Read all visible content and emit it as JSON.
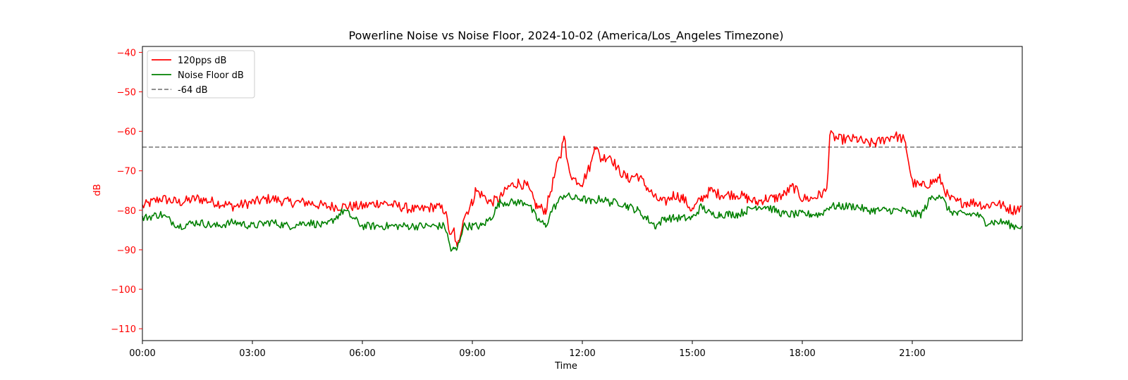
{
  "chart_data": {
    "type": "line",
    "title": "Powerline Noise vs Noise Floor, 2024-10-02 (America/Los_Angeles Timezone)",
    "xlabel": "Time",
    "ylabel": "dB",
    "xlim": [
      "00:00",
      "24:00"
    ],
    "ylim": [
      -113,
      -38.5
    ],
    "x_ticks": [
      "00:00",
      "03:00",
      "06:00",
      "09:00",
      "12:00",
      "15:00",
      "18:00",
      "21:00"
    ],
    "y_ticks": [
      -40,
      -50,
      -60,
      -70,
      -80,
      -90,
      -100,
      -110
    ],
    "grid": false,
    "legend_position": "top-left",
    "colors": {
      "pps": "#ff0000",
      "noise_floor": "#008000",
      "threshold": "#808080",
      "ylabel": "#ff0000",
      "ytick": "#ff0000"
    },
    "threshold": {
      "name": "-64 dB",
      "value": -64
    },
    "series": [
      {
        "name": "120pps dB",
        "color": "#ff0000",
        "x": [
          "00:00",
          "00:30",
          "01:00",
          "01:30",
          "02:00",
          "02:30",
          "03:00",
          "03:30",
          "04:00",
          "04:30",
          "05:00",
          "05:30",
          "06:00",
          "06:30",
          "07:00",
          "07:30",
          "08:00",
          "08:15",
          "08:25",
          "08:30",
          "08:35",
          "08:45",
          "09:00",
          "09:05",
          "09:15",
          "09:30",
          "09:45",
          "10:00",
          "10:15",
          "10:30",
          "10:45",
          "11:00",
          "11:10",
          "11:20",
          "11:25",
          "11:30",
          "11:35",
          "11:45",
          "12:00",
          "12:15",
          "12:20",
          "12:30",
          "12:45",
          "13:00",
          "13:15",
          "13:30",
          "13:45",
          "14:00",
          "14:15",
          "14:30",
          "14:45",
          "15:00",
          "15:15",
          "15:30",
          "15:45",
          "16:00",
          "16:15",
          "16:30",
          "16:45",
          "17:00",
          "17:15",
          "17:30",
          "17:45",
          "18:00",
          "18:15",
          "18:30",
          "18:40",
          "18:45",
          "19:00",
          "19:15",
          "19:30",
          "19:45",
          "20:00",
          "20:15",
          "20:30",
          "20:45",
          "20:50",
          "21:00",
          "21:15",
          "21:30",
          "21:45",
          "22:00",
          "22:15",
          "22:30",
          "22:45",
          "23:00",
          "23:15",
          "23:30",
          "23:45",
          "23:59"
        ],
        "values": [
          -79,
          -77,
          -78,
          -77,
          -78,
          -79,
          -78,
          -77,
          -78,
          -78,
          -79,
          -79,
          -79,
          -78,
          -79,
          -80,
          -79,
          -80,
          -87,
          -85,
          -90,
          -82,
          -78,
          -75,
          -76,
          -78,
          -77,
          -74,
          -73,
          -74,
          -79,
          -80,
          -74,
          -68,
          -66,
          -60,
          -68,
          -72,
          -73,
          -68,
          -63,
          -67,
          -66,
          -70,
          -72,
          -71,
          -74,
          -77,
          -78,
          -76,
          -77,
          -80,
          -77,
          -75,
          -76,
          -76,
          -76,
          -77,
          -78,
          -77,
          -77,
          -76,
          -74,
          -77,
          -77,
          -76,
          -75,
          -61,
          -62,
          -62,
          -62,
          -63,
          -63,
          -62,
          -61,
          -62,
          -64,
          -73,
          -74,
          -73,
          -72,
          -77,
          -78,
          -78,
          -78,
          -79,
          -78,
          -79,
          -80,
          -79
        ]
      },
      {
        "name": "Noise Floor dB",
        "color": "#008000",
        "x": [
          "00:00",
          "00:30",
          "01:00",
          "01:30",
          "02:00",
          "02:30",
          "03:00",
          "03:30",
          "04:00",
          "04:30",
          "05:00",
          "05:30",
          "06:00",
          "06:30",
          "07:00",
          "07:30",
          "08:00",
          "08:15",
          "08:25",
          "08:30",
          "08:35",
          "08:45",
          "09:00",
          "09:15",
          "09:30",
          "09:45",
          "10:00",
          "10:15",
          "10:30",
          "10:45",
          "11:00",
          "11:10",
          "11:20",
          "11:30",
          "11:45",
          "12:00",
          "12:15",
          "12:30",
          "12:45",
          "13:00",
          "13:15",
          "13:30",
          "13:45",
          "14:00",
          "14:15",
          "14:30",
          "14:45",
          "15:00",
          "15:15",
          "15:30",
          "15:45",
          "16:00",
          "16:15",
          "16:30",
          "16:45",
          "17:00",
          "17:15",
          "17:30",
          "17:45",
          "18:00",
          "18:15",
          "18:30",
          "18:45",
          "19:00",
          "19:15",
          "19:30",
          "19:45",
          "20:00",
          "20:15",
          "20:30",
          "20:45",
          "21:00",
          "21:15",
          "21:30",
          "21:45",
          "22:00",
          "22:15",
          "22:30",
          "22:45",
          "23:00",
          "23:15",
          "23:30",
          "23:45",
          "23:59"
        ],
        "values": [
          -82,
          -81,
          -84,
          -83,
          -84,
          -83,
          -84,
          -83,
          -84,
          -83,
          -84,
          -80,
          -84,
          -84,
          -84,
          -84,
          -84,
          -84,
          -90,
          -90,
          -90,
          -84,
          -84,
          -84,
          -82,
          -78,
          -78,
          -78,
          -78,
          -82,
          -84,
          -80,
          -78,
          -76,
          -77,
          -77,
          -78,
          -77,
          -78,
          -78,
          -79,
          -80,
          -82,
          -84,
          -82,
          -82,
          -82,
          -82,
          -79,
          -81,
          -81,
          -81,
          -81,
          -80,
          -79,
          -79,
          -80,
          -81,
          -81,
          -81,
          -81,
          -81,
          -79,
          -79,
          -79,
          -79,
          -80,
          -80,
          -80,
          -80,
          -80,
          -81,
          -81,
          -77,
          -76,
          -80,
          -81,
          -81,
          -81,
          -83,
          -83,
          -83,
          -84,
          -84
        ]
      }
    ]
  }
}
